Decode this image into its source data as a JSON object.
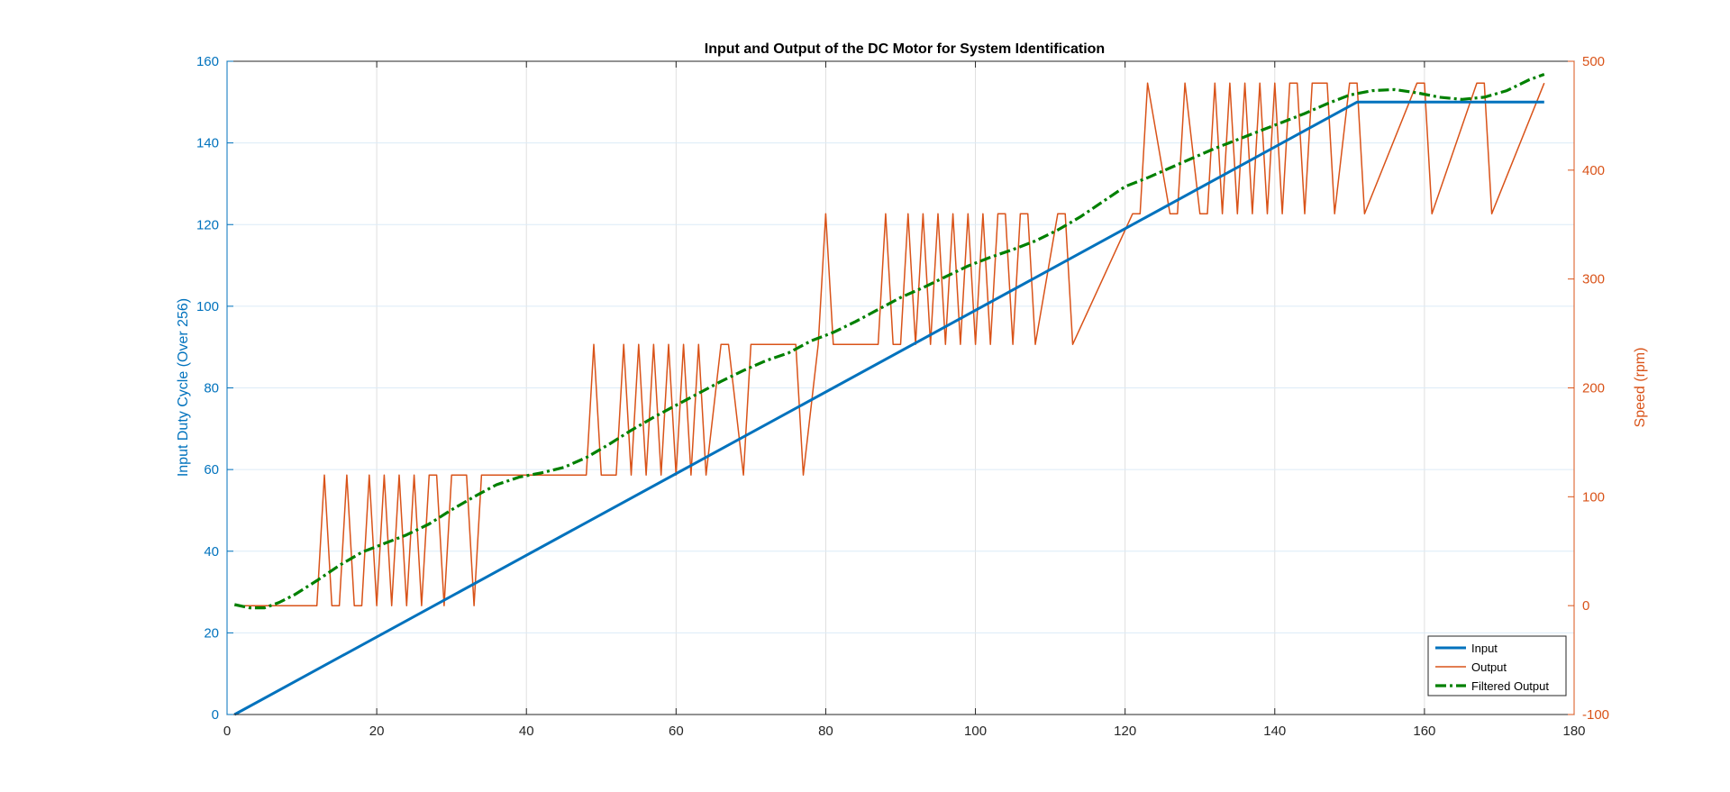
{
  "chart_data": {
    "type": "line",
    "title": "Input and Output of the DC Motor for System Identification",
    "xlim": [
      0,
      180
    ],
    "x_ticks": [
      0,
      20,
      40,
      60,
      80,
      100,
      120,
      140,
      160,
      180
    ],
    "grid": true,
    "legend_position": "bottom-right",
    "left_axis": {
      "label": "Input Duty Cycle (Over 256)",
      "color": "#0072bd",
      "ylim": [
        0,
        160
      ],
      "ticks": [
        0,
        20,
        40,
        60,
        80,
        100,
        120,
        140,
        160
      ]
    },
    "right_axis": {
      "label": "Speed (rpm)",
      "color": "#d95319",
      "ylim": [
        -100,
        500
      ],
      "ticks": [
        -100,
        0,
        100,
        200,
        300,
        400,
        500
      ]
    },
    "series": [
      {
        "name": "Input",
        "axis": "left",
        "color": "#0072bd",
        "style": "solid",
        "x": [
          1,
          151,
          176
        ],
        "y": [
          0,
          150,
          150
        ]
      },
      {
        "name": "Output",
        "axis": "right",
        "color": "#d95319",
        "style": "solid",
        "x": [
          1,
          2,
          12,
          13,
          14,
          15,
          16,
          17,
          18,
          19,
          20,
          21,
          22,
          23,
          24,
          25,
          26,
          27,
          28,
          29,
          30,
          31,
          32,
          33,
          34,
          48,
          49,
          50,
          52,
          53,
          54,
          55,
          56,
          57,
          58,
          59,
          60,
          61,
          62,
          63,
          64,
          66,
          67,
          69,
          70,
          76,
          77,
          79,
          80,
          81,
          87,
          88,
          89,
          90,
          91,
          92,
          93,
          94,
          95,
          96,
          97,
          98,
          99,
          100,
          101,
          102,
          103,
          104,
          105,
          106,
          107,
          108,
          111,
          112,
          113,
          121,
          122,
          123,
          126,
          127,
          128,
          130,
          131,
          132,
          133,
          134,
          135,
          136,
          137,
          138,
          139,
          140,
          141,
          142,
          143,
          144,
          145,
          146,
          147,
          148,
          150,
          151,
          152,
          159,
          160,
          161,
          167,
          168,
          169,
          176
        ],
        "y": [
          0,
          0,
          0,
          120,
          0,
          0,
          120,
          0,
          0,
          120,
          0,
          120,
          0,
          120,
          0,
          120,
          0,
          120,
          120,
          0,
          120,
          120,
          120,
          0,
          120,
          120,
          240,
          120,
          120,
          240,
          120,
          240,
          120,
          240,
          120,
          240,
          120,
          240,
          120,
          240,
          120,
          240,
          240,
          120,
          240,
          240,
          120,
          240,
          360,
          240,
          240,
          360,
          240,
          240,
          360,
          240,
          360,
          240,
          360,
          240,
          360,
          240,
          360,
          240,
          360,
          240,
          360,
          360,
          240,
          360,
          360,
          240,
          360,
          360,
          240,
          360,
          360,
          480,
          360,
          360,
          480,
          360,
          360,
          480,
          360,
          480,
          360,
          480,
          360,
          480,
          360,
          480,
          360,
          480,
          480,
          360,
          480,
          480,
          480,
          360,
          480,
          480,
          360,
          480,
          480,
          360,
          480,
          480,
          360,
          480
        ]
      },
      {
        "name": "Filtered Output",
        "axis": "right",
        "color": "#008000",
        "style": "dash-dot",
        "x": [
          1,
          3,
          5,
          7,
          9,
          12,
          15,
          18,
          21,
          24,
          27,
          30,
          33,
          36,
          39,
          42,
          45,
          48,
          51,
          54,
          57,
          60,
          63,
          66,
          69,
          72,
          75,
          78,
          81,
          84,
          87,
          90,
          93,
          96,
          99,
          102,
          105,
          108,
          111,
          114,
          117,
          120,
          123,
          126,
          129,
          132,
          135,
          138,
          141,
          144,
          147,
          150,
          153,
          156,
          159,
          162,
          165,
          168,
          171,
          174,
          176
        ],
        "y": [
          1,
          -2,
          -2,
          3,
          10,
          23,
          37,
          49,
          57,
          65,
          75,
          88,
          100,
          111,
          118,
          122,
          127,
          136,
          148,
          161,
          173,
          184,
          195,
          206,
          216,
          225,
          232,
          243,
          251,
          261,
          272,
          283,
          292,
          302,
          312,
          320,
          327,
          335,
          345,
          357,
          371,
          385,
          393,
          402,
          411,
          420,
          428,
          436,
          444,
          452,
          461,
          469,
          473,
          474,
          471,
          467,
          465,
          467,
          473,
          483,
          488
        ]
      }
    ]
  }
}
